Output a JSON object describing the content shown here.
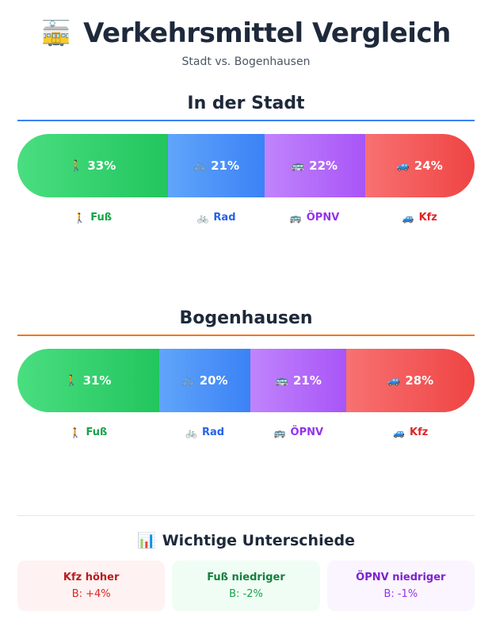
{
  "header": {
    "icon": "tram-emoji",
    "icon_glyph": "🚋",
    "title": "Verkehrsmittel Vergleich",
    "subtitle": "Stadt vs. Bogenhausen"
  },
  "modes": [
    {
      "key": "fuss",
      "label": "Fuß",
      "icon": "walking-person-icon",
      "glyph": "🚶",
      "color_from": "#4ade80",
      "color_to": "#22c55e",
      "text_color": "#16a34a"
    },
    {
      "key": "rad",
      "label": "Rad",
      "icon": "bicycle-icon",
      "glyph": "🚲",
      "color_from": "#60a5fa",
      "color_to": "#3b82f6",
      "text_color": "#2563eb"
    },
    {
      "key": "oepnv",
      "label": "ÖPNV",
      "icon": "bus-icon",
      "glyph": "🚌",
      "color_from": "#c084fc",
      "color_to": "#a855f7",
      "text_color": "#9333ea"
    },
    {
      "key": "kfz",
      "label": "Kfz",
      "icon": "car-icon",
      "glyph": "🚙",
      "color_from": "#f87171",
      "color_to": "#ef4444",
      "text_color": "#dc2626"
    }
  ],
  "chart_data": [
    {
      "type": "bar",
      "stacked": "100%",
      "title": "In der Stadt",
      "rule_color": "#3b82f6",
      "categories": [
        "Fuß",
        "Rad",
        "ÖPNV",
        "Kfz"
      ],
      "values": [
        33,
        21,
        22,
        24
      ],
      "value_labels": [
        "33%",
        "21%",
        "22%",
        "24%"
      ]
    },
    {
      "type": "bar",
      "stacked": "100%",
      "title": "Bogenhausen",
      "rule_color": "#f97316",
      "categories": [
        "Fuß",
        "Rad",
        "ÖPNV",
        "Kfz"
      ],
      "values": [
        31,
        20,
        21,
        28
      ],
      "value_labels": [
        "31%",
        "20%",
        "21%",
        "28%"
      ]
    }
  ],
  "differences": {
    "icon": "bar-chart-icon",
    "icon_glyph": "📊",
    "title": "Wichtige Unterschiede",
    "cards": [
      {
        "title": "Kfz höher",
        "value": "B: +4%",
        "bg": "#fef2f2",
        "title_color": "#b91c1c",
        "value_color": "#dc2626"
      },
      {
        "title": "Fuß niedriger",
        "value": "B: -2%",
        "bg": "#f0fdf4",
        "title_color": "#15803d",
        "value_color": "#16a34a"
      },
      {
        "title": "ÖPNV niedriger",
        "value": "B: -1%",
        "bg": "#faf5ff",
        "title_color": "#7e22ce",
        "value_color": "#9333ea"
      }
    ]
  }
}
